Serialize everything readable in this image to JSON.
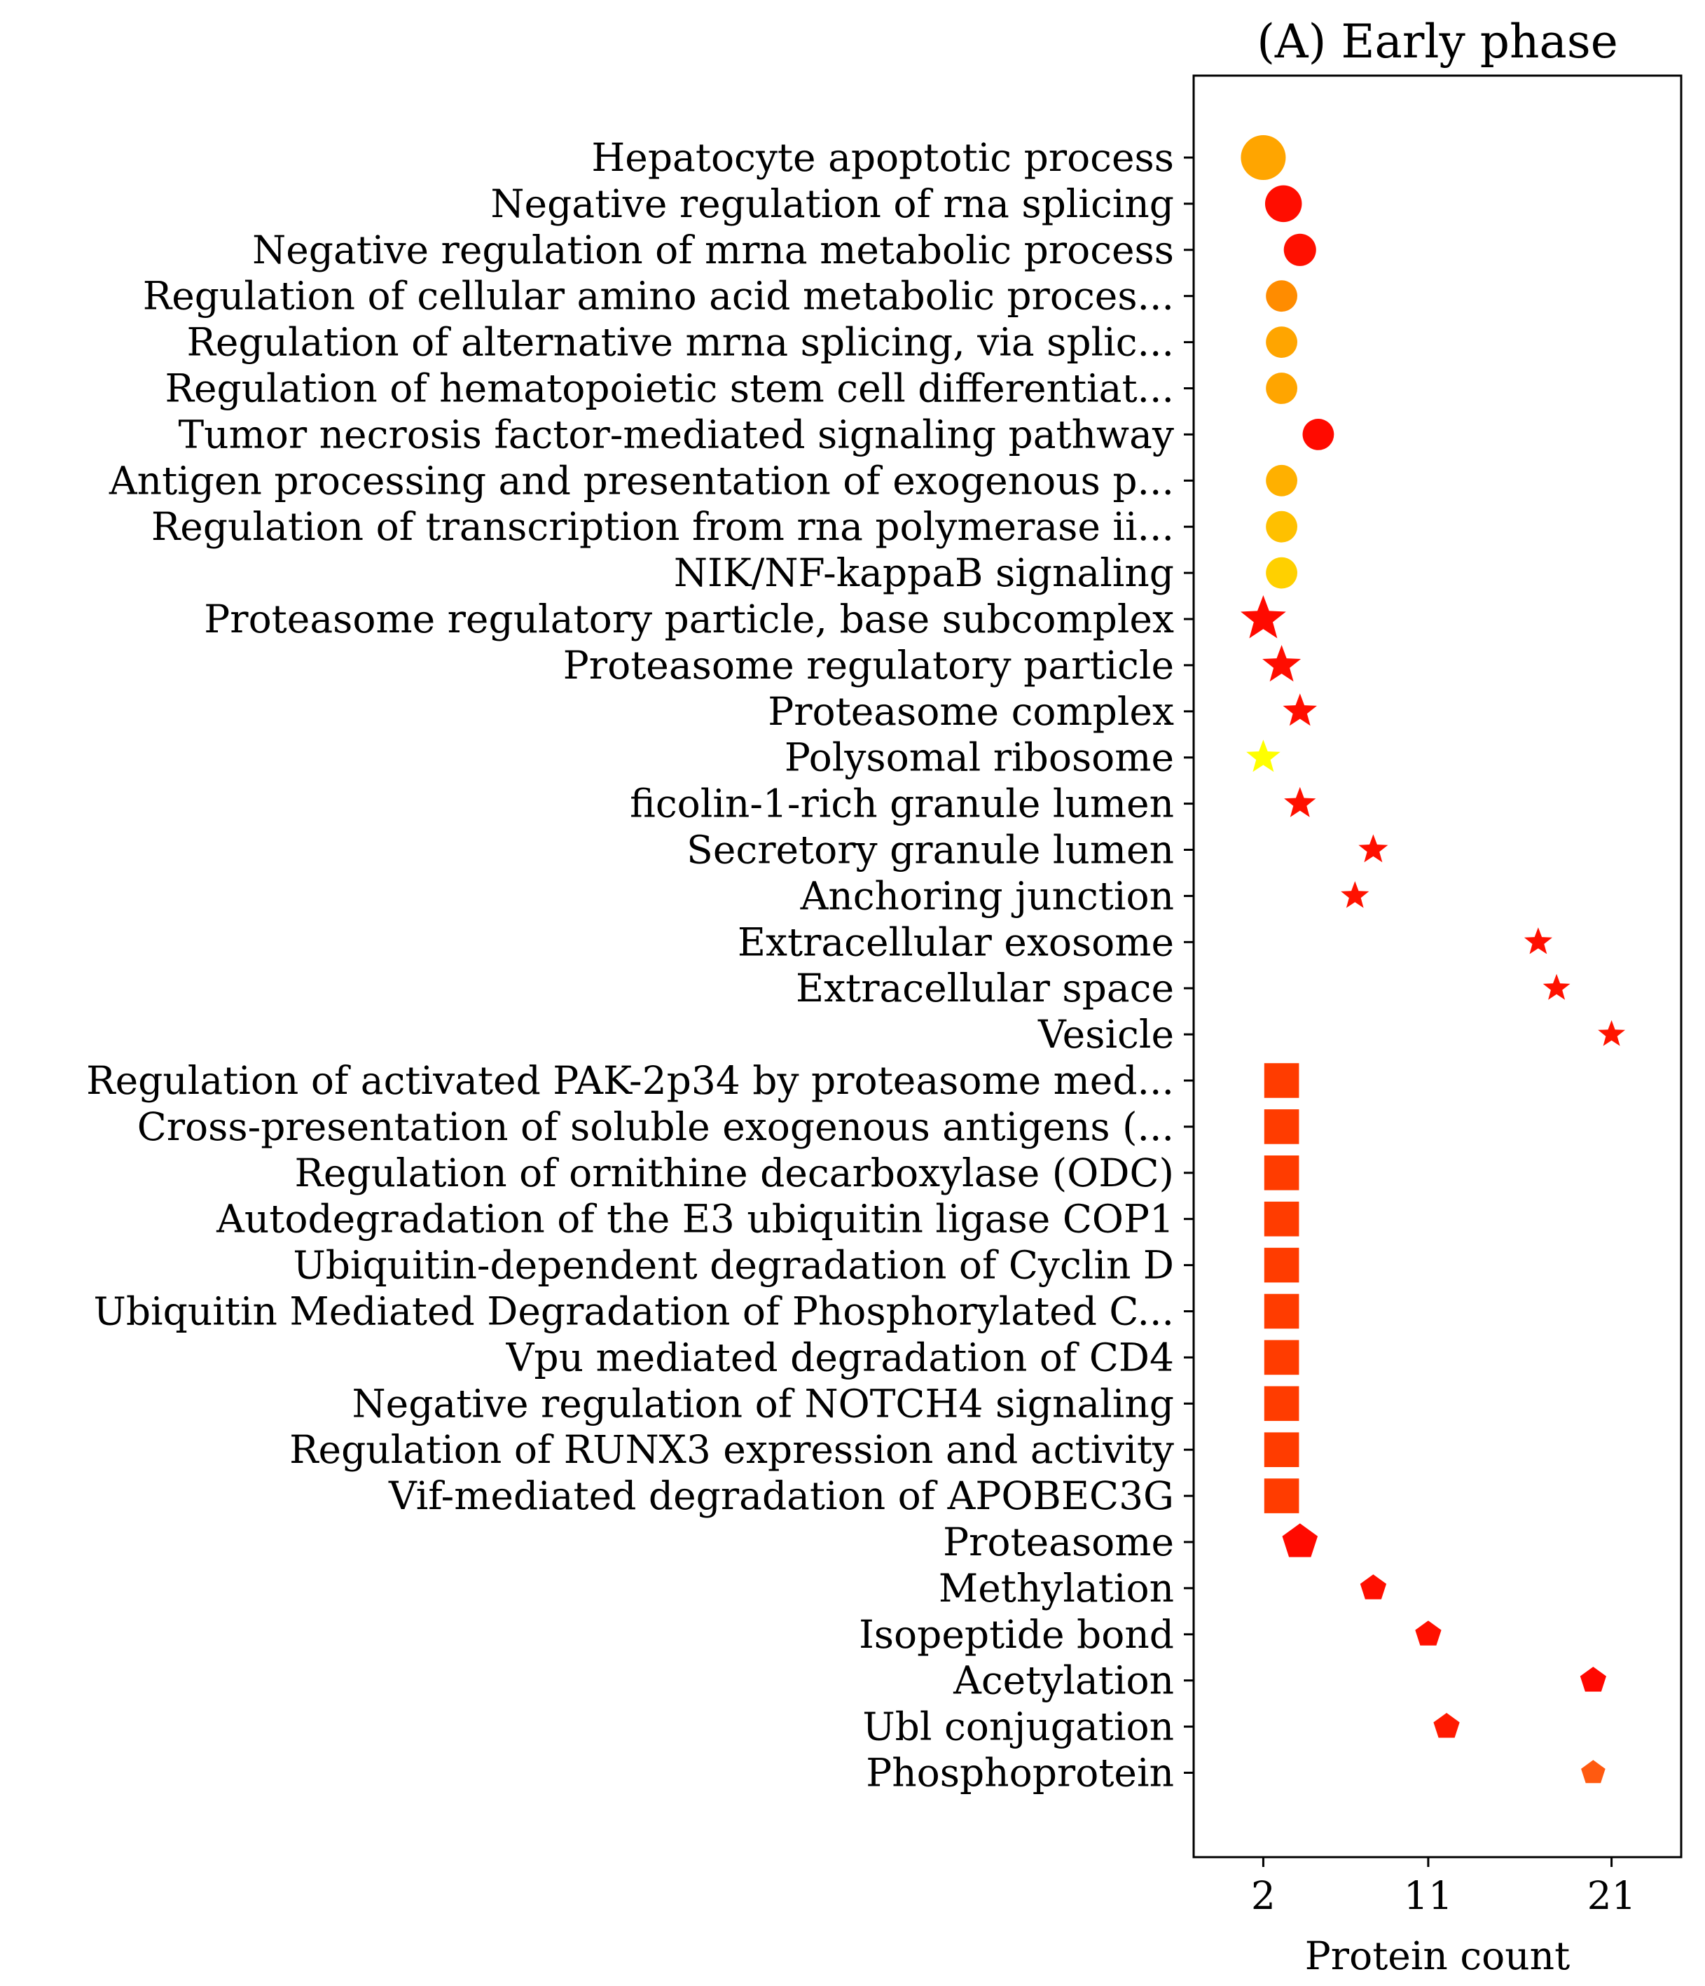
{
  "chart_data": {
    "type": "scatter",
    "title": "(A) Early phase",
    "xlabel": "Protein count",
    "ylabel": "",
    "xlim": [
      -1.8,
      24.8
    ],
    "xticks": [
      2,
      11,
      21
    ],
    "grid": false,
    "legend": "none",
    "points": [
      {
        "label": "Hepatocyte apoptotic process",
        "x": 2.0,
        "marker": "circle",
        "size": 1.0,
        "color": "#ffa500"
      },
      {
        "label": "Negative regulation of rna splicing",
        "x": 3.1,
        "marker": "circle",
        "size": 0.82,
        "color": "#ff0d00"
      },
      {
        "label": "Negative regulation of mrna metabolic process",
        "x": 4.0,
        "marker": "circle",
        "size": 0.72,
        "color": "#ff1000"
      },
      {
        "label": "Regulation of cellular amino acid metabolic proces...",
        "x": 3.0,
        "marker": "circle",
        "size": 0.7,
        "color": "#ff8c00"
      },
      {
        "label": "Regulation of alternative mrna splicing, via splic...",
        "x": 3.0,
        "marker": "circle",
        "size": 0.7,
        "color": "#ffa500"
      },
      {
        "label": "Regulation of hematopoietic stem cell differentiat...",
        "x": 3.0,
        "marker": "circle",
        "size": 0.7,
        "color": "#ffa500"
      },
      {
        "label": "Tumor necrosis factor-mediated signaling pathway",
        "x": 5.0,
        "marker": "circle",
        "size": 0.7,
        "color": "#ff0a00"
      },
      {
        "label": "Antigen processing and presentation of exogenous p...",
        "x": 3.0,
        "marker": "circle",
        "size": 0.7,
        "color": "#ffb000"
      },
      {
        "label": "Regulation of transcription from rna polymerase ii...",
        "x": 3.0,
        "marker": "circle",
        "size": 0.7,
        "color": "#ffc000"
      },
      {
        "label": "NIK/NF-kappaB signaling",
        "x": 3.0,
        "marker": "circle",
        "size": 0.7,
        "color": "#ffd000"
      },
      {
        "label": "Proteasome regulatory particle, base subcomplex",
        "x": 2.0,
        "marker": "star",
        "size": 1.0,
        "color": "#ff0a00"
      },
      {
        "label": "Proteasome regulatory particle",
        "x": 3.0,
        "marker": "star",
        "size": 0.85,
        "color": "#ff0d00"
      },
      {
        "label": "Proteasome complex",
        "x": 4.0,
        "marker": "star",
        "size": 0.75,
        "color": "#ff0f00"
      },
      {
        "label": "Polysomal ribosome",
        "x": 2.0,
        "marker": "star",
        "size": 0.75,
        "color": "#ffff00"
      },
      {
        "label": "ficolin-1-rich granule lumen",
        "x": 4.0,
        "marker": "star",
        "size": 0.7,
        "color": "#ff1000"
      },
      {
        "label": "Secretory granule lumen",
        "x": 8.0,
        "marker": "star",
        "size": 0.65,
        "color": "#ff0f00"
      },
      {
        "label": "Anchoring junction",
        "x": 7.0,
        "marker": "star",
        "size": 0.62,
        "color": "#ff1200"
      },
      {
        "label": "Extracellular exosome",
        "x": 17.0,
        "marker": "star",
        "size": 0.62,
        "color": "#ff1000"
      },
      {
        "label": "Extracellular space",
        "x": 18.0,
        "marker": "star",
        "size": 0.6,
        "color": "#ff1200"
      },
      {
        "label": "Vesicle",
        "x": 21.0,
        "marker": "star",
        "size": 0.6,
        "color": "#ff1500"
      },
      {
        "label": "Regulation of activated PAK-2p34 by proteasome med...",
        "x": 3.0,
        "marker": "square",
        "size": 0.8,
        "color": "#ff3c00"
      },
      {
        "label": "Cross-presentation of soluble exogenous antigens (...",
        "x": 3.0,
        "marker": "square",
        "size": 0.8,
        "color": "#ff3c00"
      },
      {
        "label": "Regulation of ornithine decarboxylase (ODC)",
        "x": 3.0,
        "marker": "square",
        "size": 0.8,
        "color": "#ff3c00"
      },
      {
        "label": "Autodegradation of the E3 ubiquitin ligase COP1",
        "x": 3.0,
        "marker": "square",
        "size": 0.8,
        "color": "#ff3c00"
      },
      {
        "label": "Ubiquitin-dependent degradation of Cyclin D",
        "x": 3.0,
        "marker": "square",
        "size": 0.8,
        "color": "#ff3c00"
      },
      {
        "label": "Ubiquitin Mediated Degradation of Phosphorylated C...",
        "x": 3.0,
        "marker": "square",
        "size": 0.8,
        "color": "#ff3c00"
      },
      {
        "label": "Vpu mediated degradation of CD4",
        "x": 3.0,
        "marker": "square",
        "size": 0.8,
        "color": "#ff3c00"
      },
      {
        "label": "Negative regulation of NOTCH4 signaling",
        "x": 3.0,
        "marker": "square",
        "size": 0.8,
        "color": "#ff3c00"
      },
      {
        "label": "Regulation of RUNX3 expression and activity",
        "x": 3.0,
        "marker": "square",
        "size": 0.8,
        "color": "#ff3c00"
      },
      {
        "label": "Vif-mediated degradation of APOBEC3G",
        "x": 3.0,
        "marker": "square",
        "size": 0.8,
        "color": "#ff3c00"
      },
      {
        "label": "Proteasome",
        "x": 4.0,
        "marker": "pentagon",
        "size": 0.95,
        "color": "#ff0a00"
      },
      {
        "label": "Methylation",
        "x": 8.0,
        "marker": "pentagon",
        "size": 0.7,
        "color": "#ff0f00"
      },
      {
        "label": "Isopeptide bond",
        "x": 11.0,
        "marker": "pentagon",
        "size": 0.7,
        "color": "#ff1000"
      },
      {
        "label": "Acetylation",
        "x": 20.0,
        "marker": "pentagon",
        "size": 0.7,
        "color": "#ff0800"
      },
      {
        "label": "Ubl conjugation",
        "x": 12.0,
        "marker": "pentagon",
        "size": 0.7,
        "color": "#ff1a00"
      },
      {
        "label": "Phosphoprotein",
        "x": 20.0,
        "marker": "pentagon",
        "size": 0.65,
        "color": "#ff5a10"
      }
    ]
  }
}
